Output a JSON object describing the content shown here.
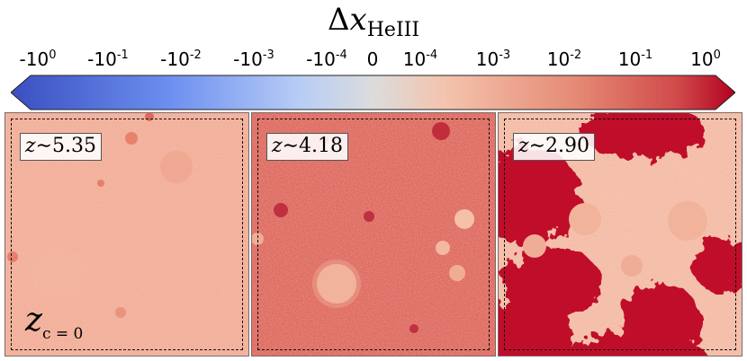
{
  "colorbar": {
    "title_symbol": "Δ",
    "title_var": "x",
    "title_sub": "HeIII",
    "ticks": [
      {
        "base": "-10",
        "exp": "0"
      },
      {
        "base": "-10",
        "exp": "-1"
      },
      {
        "base": "-10",
        "exp": "-2"
      },
      {
        "base": "-10",
        "exp": "-3"
      },
      {
        "base": "-10",
        "exp": "-4"
      },
      {
        "base": "0",
        "exp": ""
      },
      {
        "base": "10",
        "exp": "-4"
      },
      {
        "base": "10",
        "exp": "-3"
      },
      {
        "base": "10",
        "exp": "-2"
      },
      {
        "base": "10",
        "exp": "-1"
      },
      {
        "base": "10",
        "exp": "0"
      }
    ],
    "colors": {
      "neg_max": "#3a4fc0",
      "neg_mid": "#88aaf5",
      "zero": "#dcdcdc",
      "pos_mid": "#f2b095",
      "pos_high": "#d86060",
      "pos_max": "#b30020"
    }
  },
  "panels": [
    {
      "redshift_var": "z",
      "redshift_op": "∼",
      "redshift_value": "5.35",
      "base_color": "#f0a087"
    },
    {
      "redshift_var": "z",
      "redshift_op": "∼",
      "redshift_value": "4.18",
      "base_color": "#de6a5a"
    },
    {
      "redshift_var": "z",
      "redshift_op": "∼",
      "redshift_value": "2.90",
      "base_color": "#f2b29a"
    }
  ],
  "corner_label": {
    "var": "z",
    "sub": "c = 0"
  }
}
